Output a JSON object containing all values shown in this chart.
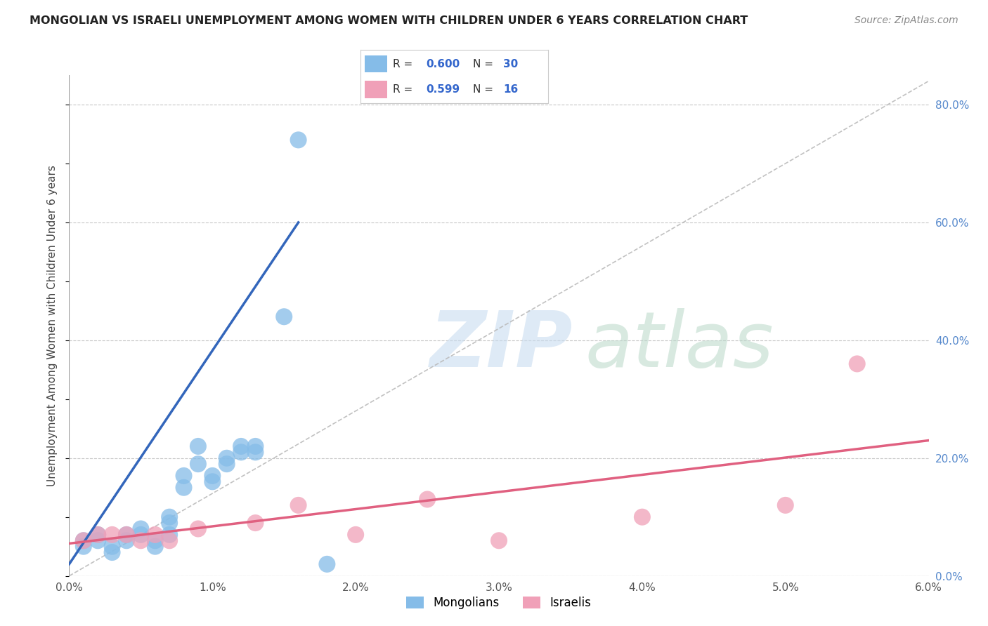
{
  "title": "MONGOLIAN VS ISRAELI UNEMPLOYMENT AMONG WOMEN WITH CHILDREN UNDER 6 YEARS CORRELATION CHART",
  "source": "Source: ZipAtlas.com",
  "ylabel": "Unemployment Among Women with Children Under 6 years",
  "xlim": [
    0,
    0.06
  ],
  "ylim": [
    0,
    0.85
  ],
  "background_color": "#ffffff",
  "grid_color": "#c8c8c8",
  "mongolian_pts_x": [
    0.001,
    0.001,
    0.002,
    0.002,
    0.003,
    0.003,
    0.004,
    0.004,
    0.005,
    0.005,
    0.006,
    0.006,
    0.007,
    0.007,
    0.007,
    0.008,
    0.008,
    0.009,
    0.009,
    0.01,
    0.01,
    0.011,
    0.011,
    0.012,
    0.012,
    0.013,
    0.013,
    0.015,
    0.016,
    0.018
  ],
  "mongolian_pts_y": [
    0.06,
    0.05,
    0.07,
    0.06,
    0.04,
    0.05,
    0.07,
    0.06,
    0.08,
    0.07,
    0.06,
    0.05,
    0.1,
    0.09,
    0.07,
    0.15,
    0.17,
    0.22,
    0.19,
    0.17,
    0.16,
    0.2,
    0.19,
    0.22,
    0.21,
    0.22,
    0.21,
    0.44,
    0.74,
    0.02
  ],
  "israeli_pts_x": [
    0.001,
    0.002,
    0.003,
    0.004,
    0.005,
    0.006,
    0.007,
    0.009,
    0.013,
    0.016,
    0.02,
    0.025,
    0.03,
    0.04,
    0.05,
    0.055
  ],
  "israeli_pts_y": [
    0.06,
    0.07,
    0.07,
    0.07,
    0.06,
    0.07,
    0.06,
    0.08,
    0.09,
    0.12,
    0.07,
    0.13,
    0.06,
    0.1,
    0.12,
    0.36
  ],
  "mongolian_color": "#85BCE8",
  "israeli_color": "#F0A0B8",
  "mongolian_line_color": "#3366BB",
  "israeli_line_color": "#E06080",
  "diagonal_color": "#BBBBBB",
  "mong_line_x0": 0.0,
  "mong_line_x1": 0.016,
  "mong_line_y0": 0.02,
  "mong_line_y1": 0.6,
  "isr_line_x0": 0.0,
  "isr_line_x1": 0.06,
  "isr_line_y0": 0.055,
  "isr_line_y1": 0.23,
  "right_ytick_labels": [
    "0.0%",
    "20.0%",
    "40.0%",
    "60.0%",
    "80.0%"
  ],
  "right_ytick_values": [
    0.0,
    0.2,
    0.4,
    0.6,
    0.8
  ],
  "xtick_labels": [
    "0.0%",
    "1.0%",
    "2.0%",
    "3.0%",
    "4.0%",
    "5.0%",
    "6.0%"
  ],
  "xtick_values": [
    0.0,
    0.01,
    0.02,
    0.03,
    0.04,
    0.05,
    0.06
  ],
  "legend_R_mong": "0.600",
  "legend_N_mong": "30",
  "legend_R_isr": "0.599",
  "legend_N_isr": "16"
}
